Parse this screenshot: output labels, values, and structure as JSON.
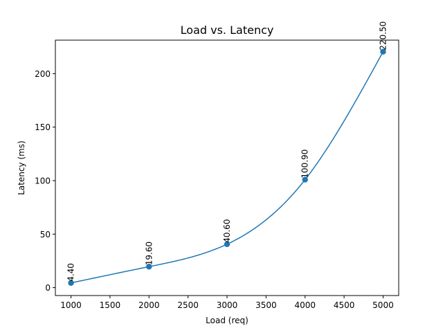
{
  "chart_data": {
    "type": "line",
    "title": "Load vs. Latency",
    "xlabel": "Load (req)",
    "ylabel": "Latency (ms)",
    "x": [
      1000,
      2000,
      3000,
      4000,
      5000
    ],
    "series": [
      {
        "values": [
          4.4,
          19.6,
          40.6,
          100.9,
          220.5
        ],
        "color": "#1f77b4",
        "smooth_curve": true,
        "markers": true
      }
    ],
    "data_labels": [
      "4.40",
      "19.60",
      "40.60",
      "100.90",
      "220.50"
    ],
    "xlim": [
      800,
      5200
    ],
    "ylim": [
      -7.4,
      231.3
    ],
    "xticks": [
      1000,
      1500,
      2000,
      2500,
      3000,
      3500,
      4000,
      4500,
      5000
    ],
    "yticks": [
      0,
      50,
      100,
      150,
      200
    ],
    "grid": false,
    "legend": "none"
  }
}
